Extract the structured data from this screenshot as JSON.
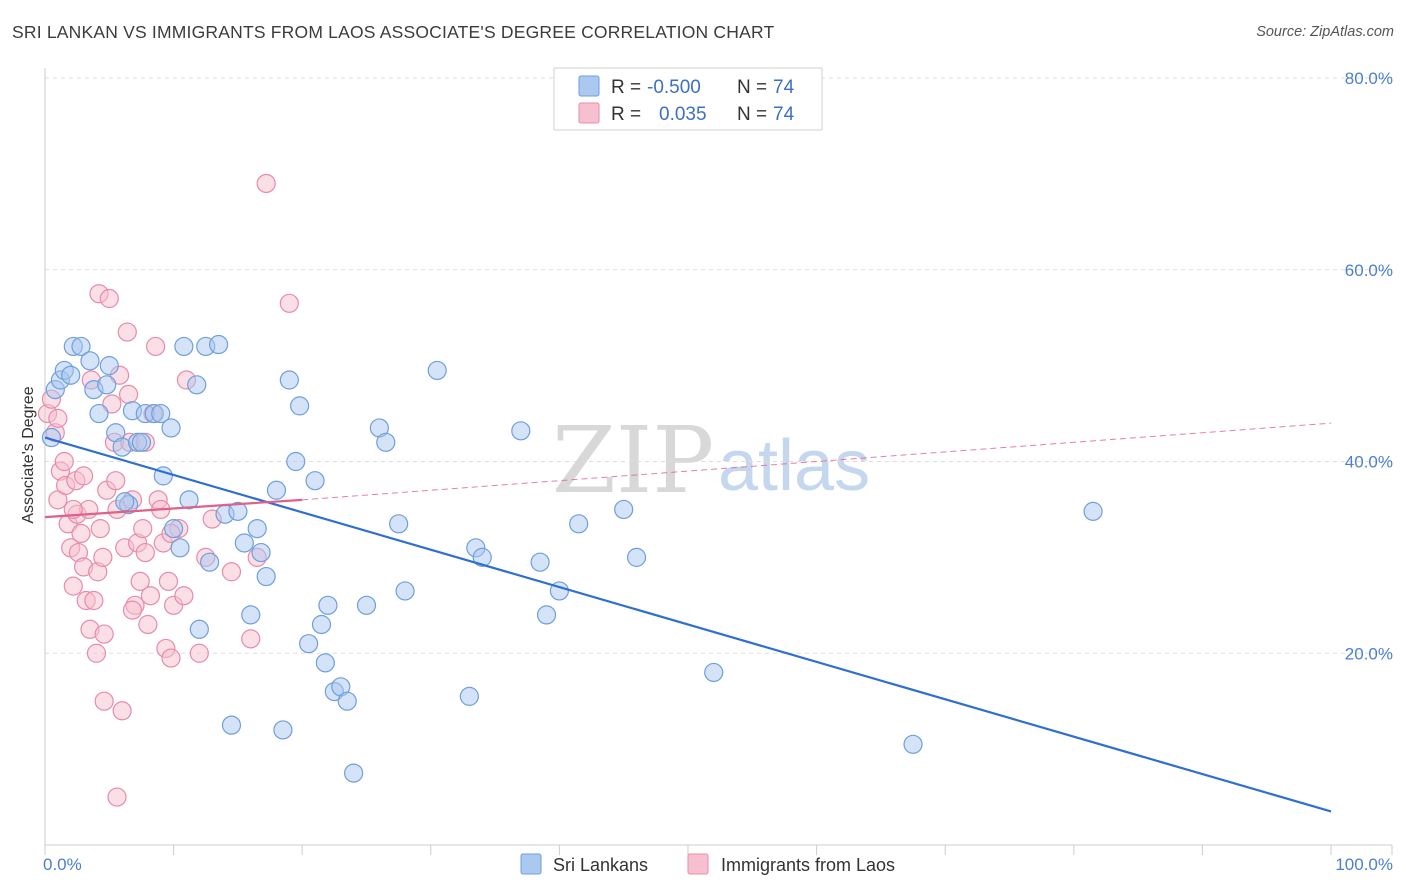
{
  "title": "SRI LANKAN VS IMMIGRANTS FROM LAOS ASSOCIATE'S DEGREE CORRELATION CHART",
  "source": "Source: ZipAtlas.com",
  "watermark": {
    "zip": "ZIP",
    "atlas": "atlas"
  },
  "colors": {
    "blue_fill": "#aac8f0",
    "blue_stroke": "#6f9fdc",
    "blue_line": "#2e6fd0",
    "pink_fill": "#f7c0d0",
    "pink_stroke": "#e88ba8",
    "pink_line": "#e0608a",
    "grid": "#dddddd",
    "tick_text": "#4a7fd1"
  },
  "legend": {
    "row1": {
      "r_label": "R =",
      "r_value": "-0.500",
      "n_label": "N =",
      "n_value": "74"
    },
    "row2": {
      "r_label": "R =",
      "r_value": "0.035",
      "n_label": "N =",
      "n_value": "74"
    }
  },
  "chart_data": {
    "type": "scatter",
    "title": "SRI LANKAN VS IMMIGRANTS FROM LAOS ASSOCIATE'S DEGREE CORRELATION CHART",
    "xlabel": "",
    "ylabel": "Associate's Degree",
    "xlim": [
      0,
      100
    ],
    "ylim": [
      0,
      80
    ],
    "x_tick_labels": [
      "0.0%",
      "100.0%"
    ],
    "y_ticks": [
      20,
      40,
      60,
      80
    ],
    "y_tick_labels": [
      "20.0%",
      "40.0%",
      "60.0%",
      "80.0%"
    ],
    "grid": true,
    "legend_position": "top-center",
    "series": [
      {
        "name": "Sri Lankans",
        "color": "#aac8f0",
        "trend": {
          "x": [
            0,
            100
          ],
          "y": [
            42.5,
            3.5
          ],
          "style": "solid"
        },
        "points": [
          [
            0.5,
            42.5
          ],
          [
            0.8,
            47.5
          ],
          [
            1.2,
            48.5
          ],
          [
            1.5,
            49.5
          ],
          [
            2.0,
            49.0
          ],
          [
            2.2,
            52.0
          ],
          [
            2.8,
            52.0
          ],
          [
            3.5,
            50.5
          ],
          [
            3.8,
            47.5
          ],
          [
            4.2,
            45.0
          ],
          [
            4.8,
            48.0
          ],
          [
            5.0,
            50.0
          ],
          [
            5.5,
            43.0
          ],
          [
            6.0,
            41.5
          ],
          [
            6.5,
            35.5
          ],
          [
            6.8,
            45.3
          ],
          [
            7.2,
            42.0
          ],
          [
            7.5,
            42.0
          ],
          [
            7.8,
            45.0
          ],
          [
            8.5,
            45.0
          ],
          [
            9.0,
            45.0
          ],
          [
            9.2,
            38.5
          ],
          [
            9.8,
            43.5
          ],
          [
            10.0,
            33.0
          ],
          [
            10.5,
            31.0
          ],
          [
            10.8,
            52.0
          ],
          [
            11.2,
            36.0
          ],
          [
            11.8,
            48.0
          ],
          [
            12.0,
            22.5
          ],
          [
            12.5,
            52.0
          ],
          [
            12.8,
            29.5
          ],
          [
            13.5,
            52.2
          ],
          [
            14.0,
            34.5
          ],
          [
            14.5,
            12.5
          ],
          [
            15.0,
            34.8
          ],
          [
            15.5,
            31.5
          ],
          [
            16.0,
            24.0
          ],
          [
            16.5,
            33.0
          ],
          [
            16.8,
            30.5
          ],
          [
            17.2,
            28.0
          ],
          [
            18.0,
            37.0
          ],
          [
            18.5,
            12.0
          ],
          [
            19.0,
            48.5
          ],
          [
            19.5,
            40.0
          ],
          [
            19.8,
            45.8
          ],
          [
            20.5,
            21.0
          ],
          [
            21.0,
            38.0
          ],
          [
            21.5,
            23.0
          ],
          [
            21.8,
            19.0
          ],
          [
            22.0,
            25.0
          ],
          [
            22.5,
            16.0
          ],
          [
            23.0,
            16.5
          ],
          [
            23.5,
            15.0
          ],
          [
            24.0,
            7.5
          ],
          [
            25.0,
            25.0
          ],
          [
            26.0,
            43.5
          ],
          [
            26.5,
            42.0
          ],
          [
            27.5,
            33.5
          ],
          [
            28.0,
            26.5
          ],
          [
            30.5,
            49.5
          ],
          [
            33.0,
            15.5
          ],
          [
            33.5,
            31.0
          ],
          [
            34.0,
            30.0
          ],
          [
            37.0,
            43.2
          ],
          [
            38.5,
            29.5
          ],
          [
            39.0,
            24.0
          ],
          [
            40.0,
            26.5
          ],
          [
            41.5,
            33.5
          ],
          [
            45.0,
            35.0
          ],
          [
            46.0,
            30.0
          ],
          [
            52.0,
            18.0
          ],
          [
            67.5,
            10.5
          ],
          [
            81.5,
            34.8
          ],
          [
            6.2,
            35.8
          ]
        ]
      },
      {
        "name": "Immigrants from Laos",
        "color": "#f7c0d0",
        "trend": {
          "x_solid": [
            0,
            20
          ],
          "y_solid": [
            34.2,
            36.0
          ],
          "x_dashed": [
            20,
            100
          ],
          "y_dashed": [
            36.0,
            44.0
          ],
          "style": "solid then dashed"
        },
        "points": [
          [
            0.2,
            45.0
          ],
          [
            0.5,
            46.5
          ],
          [
            0.8,
            43.0
          ],
          [
            1.0,
            36.0
          ],
          [
            1.2,
            39.0
          ],
          [
            1.5,
            40.0
          ],
          [
            1.6,
            37.5
          ],
          [
            1.8,
            33.5
          ],
          [
            2.0,
            31.0
          ],
          [
            2.2,
            27.0
          ],
          [
            2.4,
            38.0
          ],
          [
            2.5,
            34.5
          ],
          [
            2.6,
            30.5
          ],
          [
            2.8,
            32.5
          ],
          [
            3.0,
            29.0
          ],
          [
            3.2,
            25.5
          ],
          [
            3.4,
            35.0
          ],
          [
            3.5,
            22.5
          ],
          [
            3.6,
            48.5
          ],
          [
            3.8,
            25.5
          ],
          [
            4.0,
            20.0
          ],
          [
            4.1,
            28.5
          ],
          [
            4.2,
            57.5
          ],
          [
            4.3,
            33.0
          ],
          [
            4.5,
            30.0
          ],
          [
            4.6,
            22.0
          ],
          [
            4.8,
            37.0
          ],
          [
            5.0,
            57.0
          ],
          [
            5.2,
            46.0
          ],
          [
            5.4,
            42.0
          ],
          [
            5.5,
            38.0
          ],
          [
            5.6,
            35.0
          ],
          [
            5.8,
            49.0
          ],
          [
            6.0,
            14.0
          ],
          [
            6.2,
            31.0
          ],
          [
            6.4,
            53.5
          ],
          [
            6.5,
            47.0
          ],
          [
            6.6,
            42.0
          ],
          [
            6.8,
            36.0
          ],
          [
            7.0,
            25.0
          ],
          [
            7.2,
            31.5
          ],
          [
            7.4,
            27.5
          ],
          [
            7.6,
            33.0
          ],
          [
            7.8,
            30.5
          ],
          [
            8.0,
            23.0
          ],
          [
            8.2,
            26.0
          ],
          [
            8.4,
            45.0
          ],
          [
            8.6,
            52.0
          ],
          [
            8.8,
            36.0
          ],
          [
            9.0,
            35.0
          ],
          [
            9.2,
            31.5
          ],
          [
            9.4,
            20.5
          ],
          [
            9.6,
            27.5
          ],
          [
            9.8,
            19.5
          ],
          [
            10.0,
            25.0
          ],
          [
            10.4,
            33.0
          ],
          [
            10.8,
            26.0
          ],
          [
            11.0,
            48.5
          ],
          [
            12.0,
            20.0
          ],
          [
            12.5,
            30.0
          ],
          [
            13.0,
            34.0
          ],
          [
            14.5,
            28.5
          ],
          [
            16.0,
            21.5
          ],
          [
            16.5,
            30.0
          ],
          [
            17.2,
            69.0
          ],
          [
            19.0,
            56.5
          ],
          [
            1.0,
            44.5
          ],
          [
            2.2,
            35.0
          ],
          [
            3.0,
            38.5
          ],
          [
            4.6,
            15.0
          ],
          [
            5.6,
            5.0
          ],
          [
            6.8,
            24.5
          ],
          [
            7.8,
            42.0
          ],
          [
            9.8,
            32.5
          ]
        ]
      }
    ]
  }
}
